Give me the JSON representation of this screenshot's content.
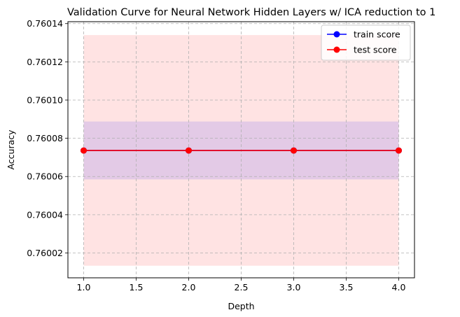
{
  "chart_data": {
    "type": "line",
    "title": "Validation Curve for Neural Network Hidden Layers w/ ICA reduction to 1",
    "xlabel": "Depth",
    "ylabel": "Accuracy",
    "xlim": [
      0.85,
      4.15
    ],
    "ylim": [
      0.760007,
      0.760141
    ],
    "x_ticks": [
      1.0,
      1.5,
      2.0,
      2.5,
      3.0,
      3.5,
      4.0
    ],
    "x_tick_labels": [
      "1.0",
      "1.5",
      "2.0",
      "2.5",
      "3.0",
      "3.5",
      "4.0"
    ],
    "y_ticks": [
      0.76002,
      0.76004,
      0.76006,
      0.76008,
      0.7601,
      0.76012,
      0.76014
    ],
    "y_tick_labels": [
      "0.76002",
      "0.76004",
      "0.76006",
      "0.76008",
      "0.76010",
      "0.76012",
      "0.76014"
    ],
    "grid": true,
    "legend_position": "top-right",
    "x": [
      1,
      2,
      3,
      4
    ],
    "series": [
      {
        "name": "train score",
        "color": "#0000ff",
        "values": [
          0.7600736,
          0.7600736,
          0.7600736,
          0.7600736
        ],
        "band_lower": [
          0.7600585,
          0.7600585,
          0.7600585,
          0.7600585
        ],
        "band_upper": [
          0.7600888,
          0.7600888,
          0.7600888,
          0.7600888
        ],
        "band_color": "#0000ff"
      },
      {
        "name": "test score",
        "color": "#ff0000",
        "values": [
          0.7600736,
          0.7600736,
          0.7600736,
          0.7600736
        ],
        "band_lower": [
          0.7600133,
          0.7600133,
          0.7600133,
          0.7600133
        ],
        "band_upper": [
          0.760134,
          0.760134,
          0.760134,
          0.760134
        ],
        "band_color": "#ff0000"
      }
    ]
  }
}
